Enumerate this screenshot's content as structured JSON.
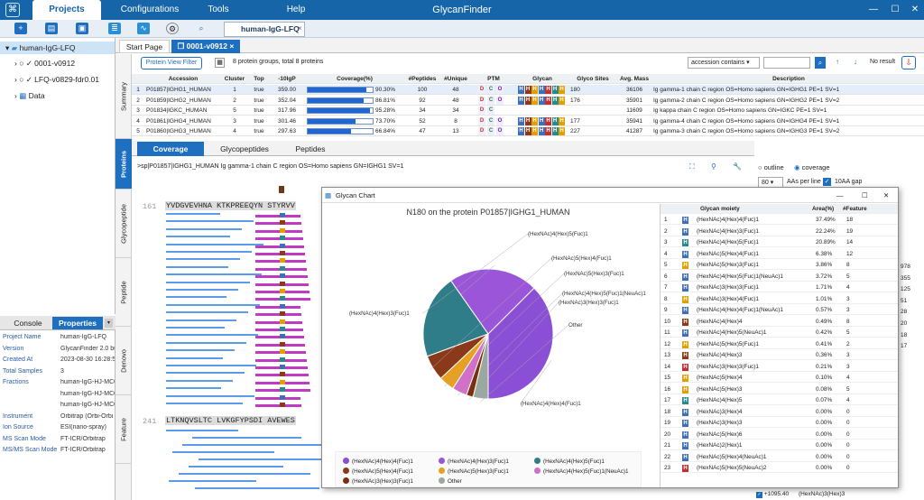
{
  "app": {
    "title": "GlycanFinder",
    "menus": [
      "Projects",
      "Configurations",
      "Tools",
      "Help"
    ],
    "active_menu": "Projects"
  },
  "toolbar": {
    "doc_tab": "human-IgG-LFQ"
  },
  "tree": {
    "root": "human-IgG-LFQ",
    "items": [
      "0001-v0912",
      "LFQ-v0829-fdr0.01",
      "Data"
    ]
  },
  "bottom_panel": {
    "tabs": [
      "Console",
      "Properties"
    ],
    "active": "Properties",
    "properties": [
      {
        "k": "Project Name",
        "v": "human-IgG-LFQ"
      },
      {
        "k": "Version",
        "v": "GlycanFinder 2.0 bu"
      },
      {
        "k": "Created At",
        "v": "2023-08-30 16:28:5("
      },
      {
        "k": "Total Samples",
        "v": "3"
      },
      {
        "k": "Fractions",
        "v": "human-IgG-HJ-MC0"
      },
      {
        "k": "",
        "v": "human-IgG-HJ-MC0"
      },
      {
        "k": "",
        "v": "human-IgG-HJ-MC0"
      },
      {
        "k": "Instrument",
        "v": "Orbitrap (Orbi-Orbi"
      },
      {
        "k": "Ion Source",
        "v": "ESI(nano-spray)"
      },
      {
        "k": "MS Scan Mode",
        "v": "FT-ICR/Orbitrap"
      },
      {
        "k": "MS/MS Scan Mode",
        "v": "FT-ICR/Orbitrap"
      }
    ]
  },
  "main_tabs": [
    "Start Page",
    "0001-v0912"
  ],
  "side_tabs": [
    "Summary",
    "Proteins",
    "Glycopeptide",
    "Peptide",
    "Denovo",
    "Feature"
  ],
  "filter": {
    "button": "Protein View Filter",
    "summary": "8 protein groups, total 8 proteins",
    "search_mode": "accession contains",
    "result": "No result"
  },
  "protein_table": {
    "headers": [
      "",
      "Accession",
      "Cluster",
      "Top",
      "-10lgP",
      "Coverage(%)",
      "#Peptides",
      "#Unique",
      "PTM",
      "Glycan",
      "Glyco Sites",
      "Avg. Mass",
      "Description"
    ],
    "rows": [
      {
        "n": "1",
        "acc": "P01857|IGHG1_HUMAN",
        "cl": "1",
        "top": "true",
        "lgp": "359.00",
        "cov": "90.30%",
        "covf": 0.903,
        "pep": "100",
        "uniq": "48",
        "site": "180",
        "mass": "36106",
        "desc": "Ig gamma-1 chain C region OS=Homo sapiens GN=IGHG1 PE=1 SV=1"
      },
      {
        "n": "2",
        "acc": "P01859|IGHG2_HUMAN",
        "cl": "2",
        "top": "true",
        "lgp": "352.04",
        "cov": "86.81%",
        "covf": 0.868,
        "pep": "92",
        "uniq": "48",
        "site": "176",
        "mass": "35901",
        "desc": "Ig gamma-2 chain C region OS=Homo sapiens GN=IGHG2 PE=1 SV=2"
      },
      {
        "n": "3",
        "acc": "P01834|IGKC_HUMAN",
        "cl": "5",
        "top": "true",
        "lgp": "317.96",
        "cov": "95.28%",
        "covf": 0.953,
        "pep": "34",
        "uniq": "34",
        "site": "",
        "mass": "11609",
        "desc": "Ig kappa chain C region OS=Homo sapiens GN=IGKC PE=1 SV=1"
      },
      {
        "n": "4",
        "acc": "P01861|IGHG4_HUMAN",
        "cl": "3",
        "top": "true",
        "lgp": "301.46",
        "cov": "73.70%",
        "covf": 0.737,
        "pep": "52",
        "uniq": "8",
        "site": "177",
        "mass": "35941",
        "desc": "Ig gamma-4 chain C region OS=Homo sapiens GN=IGHG4 PE=1 SV=1"
      },
      {
        "n": "5",
        "acc": "P01860|IGHG3_HUMAN",
        "cl": "4",
        "top": "true",
        "lgp": "297.63",
        "cov": "66.84%",
        "covf": 0.668,
        "pep": "47",
        "uniq": "13",
        "site": "227",
        "mass": "41287",
        "desc": "Ig gamma-3 chain C region OS=Homo sapiens GN=IGHG3 PE=1 SV=2"
      }
    ]
  },
  "coverage_tabs": [
    "Coverage",
    "Glycopeptides",
    "Peptides"
  ],
  "coverage": {
    "header": ">sp|P01857|IGHG1_HUMAN Ig gamma-1 chain C region OS=Homo sapiens GN=IGHG1 SV=1",
    "line1_num": "161",
    "line1_seq": "YVDGVEVHNA KTKPREEQYN STYRVV",
    "line2_num": "241",
    "line2_seq": "LTKNQVSLTC LVKGFYPSDI AVEWES",
    "options": {
      "outline": "outline",
      "coverage": "coverage",
      "aa_per_line": "80",
      "aa_label": "AAs per line",
      "gap": "10AA gap"
    }
  },
  "right_numbers": [
    "978",
    "355",
    "125",
    "51",
    "28",
    "20",
    "18",
    "17"
  ],
  "right_bottom": {
    "mass": "+1095.40",
    "glycan": "(HexNAc)3(Hex)3"
  },
  "glycan_chart": {
    "window_title": "Glycan Chart",
    "table_headers": [
      "",
      "",
      "Glycan moiety",
      "Area(%)",
      "#Feature"
    ],
    "rows": [
      {
        "n": "1",
        "g": "(HexNAc)4(Hex)4(Fuc)1",
        "a": "37.49%",
        "f": "18",
        "c": "#3f6fb5"
      },
      {
        "n": "2",
        "g": "(HexNAc)4(Hex)3(Fuc)1",
        "a": "22.24%",
        "f": "19",
        "c": "#3f6fb5"
      },
      {
        "n": "3",
        "g": "(HexNAc)4(Hex)5(Fuc)1",
        "a": "20.89%",
        "f": "14",
        "c": "#2a8a8a"
      },
      {
        "n": "4",
        "g": "(HexNAc)5(Hex)4(Fuc)1",
        "a": "6.38%",
        "f": "12",
        "c": "#3f6fb5"
      },
      {
        "n": "5",
        "g": "(HexNAc)5(Hex)3(Fuc)1",
        "a": "3.86%",
        "f": "8",
        "c": "#e0a000"
      },
      {
        "n": "6",
        "g": "(HexNAc)4(Hex)5(Fuc)1(NeuAc)1",
        "a": "3.72%",
        "f": "5",
        "c": "#3f6fb5"
      },
      {
        "n": "7",
        "g": "(HexNAc)3(Hex)3(Fuc)1",
        "a": "1.71%",
        "f": "4",
        "c": "#3f6fb5"
      },
      {
        "n": "8",
        "g": "(HexNAc)3(Hex)4(Fuc)1",
        "a": "1.01%",
        "f": "3",
        "c": "#e0a000"
      },
      {
        "n": "9",
        "g": "(HexNAc)4(Hex)4(Fuc)1(NeuAc)1",
        "a": "0.57%",
        "f": "3",
        "c": "#3f6fb5"
      },
      {
        "n": "10",
        "g": "(HexNAc)4(Hex)4",
        "a": "0.49%",
        "f": "8",
        "c": "#8a3a1a"
      },
      {
        "n": "11",
        "g": "(HexNAc)4(Hex)5(NeuAc)1",
        "a": "0.42%",
        "f": "5",
        "c": "#3f6fb5"
      },
      {
        "n": "12",
        "g": "(HexNAc)5(Hex)5(Fuc)1",
        "a": "0.41%",
        "f": "2",
        "c": "#e0a000"
      },
      {
        "n": "13",
        "g": "(HexNAc)4(Hex)3",
        "a": "0.36%",
        "f": "3",
        "c": "#8a3a1a"
      },
      {
        "n": "14",
        "g": "(HexNAc)3(Hex)3(Fuc)1",
        "a": "0.21%",
        "f": "3",
        "c": "#c03030"
      },
      {
        "n": "15",
        "g": "(HexNAc)5(Hex)4",
        "a": "0.10%",
        "f": "4",
        "c": "#e0a000"
      },
      {
        "n": "16",
        "g": "(HexNAc)5(Hex)3",
        "a": "0.08%",
        "f": "5",
        "c": "#e0a000"
      },
      {
        "n": "17",
        "g": "(HexNAc)4(Hex)5",
        "a": "0.07%",
        "f": "4",
        "c": "#2a8a8a"
      },
      {
        "n": "18",
        "g": "(HexNAc)3(Hex)4",
        "a": "0.00%",
        "f": "0",
        "c": "#3f6fb5"
      },
      {
        "n": "19",
        "g": "(HexNAc)3(Hex)3",
        "a": "0.00%",
        "f": "0",
        "c": "#3f6fb5"
      },
      {
        "n": "20",
        "g": "(HexNAc)5(Hex)6",
        "a": "0.00%",
        "f": "0",
        "c": "#3f6fb5"
      },
      {
        "n": "21",
        "g": "(HexNAc)2(Hex)1",
        "a": "0.00%",
        "f": "0",
        "c": "#3f6fb5"
      },
      {
        "n": "22",
        "g": "(HexNAc)5(Hex)4(NeuAc)1",
        "a": "0.00%",
        "f": "0",
        "c": "#3f6fb5"
      },
      {
        "n": "23",
        "g": "(HexNAc)5(Hex)5(NeuAc)2",
        "a": "0.00%",
        "f": "0",
        "c": "#c03030"
      }
    ]
  },
  "chart_data": {
    "type": "pie",
    "title": "N180 on the protein P01857|IGHG1_HUMAN",
    "slices": [
      {
        "label": "(HexNAc)4(Hex)4(Fuc)1",
        "value": 37.49,
        "color": "#8b4fd6"
      },
      {
        "label": "(HexNAc)4(Hex)3(Fuc)1",
        "value": 22.24,
        "color": "#9a55d8"
      },
      {
        "label": "(HexNAc)4(Hex)5(Fuc)1",
        "value": 20.89,
        "color": "#2e7d89"
      },
      {
        "label": "(HexNAc)5(Hex)4(Fuc)1",
        "value": 6.38,
        "color": "#8a3a1a"
      },
      {
        "label": "(HexNAc)5(Hex)3(Fuc)1",
        "value": 3.86,
        "color": "#e8a020"
      },
      {
        "label": "(HexNAc)4(Hex)5(Fuc)1(NeuAc)1",
        "value": 3.72,
        "color": "#d070c8"
      },
      {
        "label": "(HexNAc)3(Hex)3(Fuc)1",
        "value": 1.71,
        "color": "#7a3010"
      },
      {
        "label": "Other",
        "value": 3.71,
        "color": "#9aa8a0"
      }
    ],
    "legend": [
      "(HexNAc)4(Hex)4(Fuc)1",
      "(HexNAc)4(Hex)3(Fuc)1",
      "(HexNAc)4(Hex)5(Fuc)1",
      "(HexNAc)5(Hex)4(Fuc)1",
      "(HexNAc)5(Hex)3(Fuc)1",
      "(HexNAc)4(Hex)5(Fuc)1(NeuAc)1",
      "(HexNAc)3(Hex)3(Fuc)1",
      "Other"
    ]
  }
}
